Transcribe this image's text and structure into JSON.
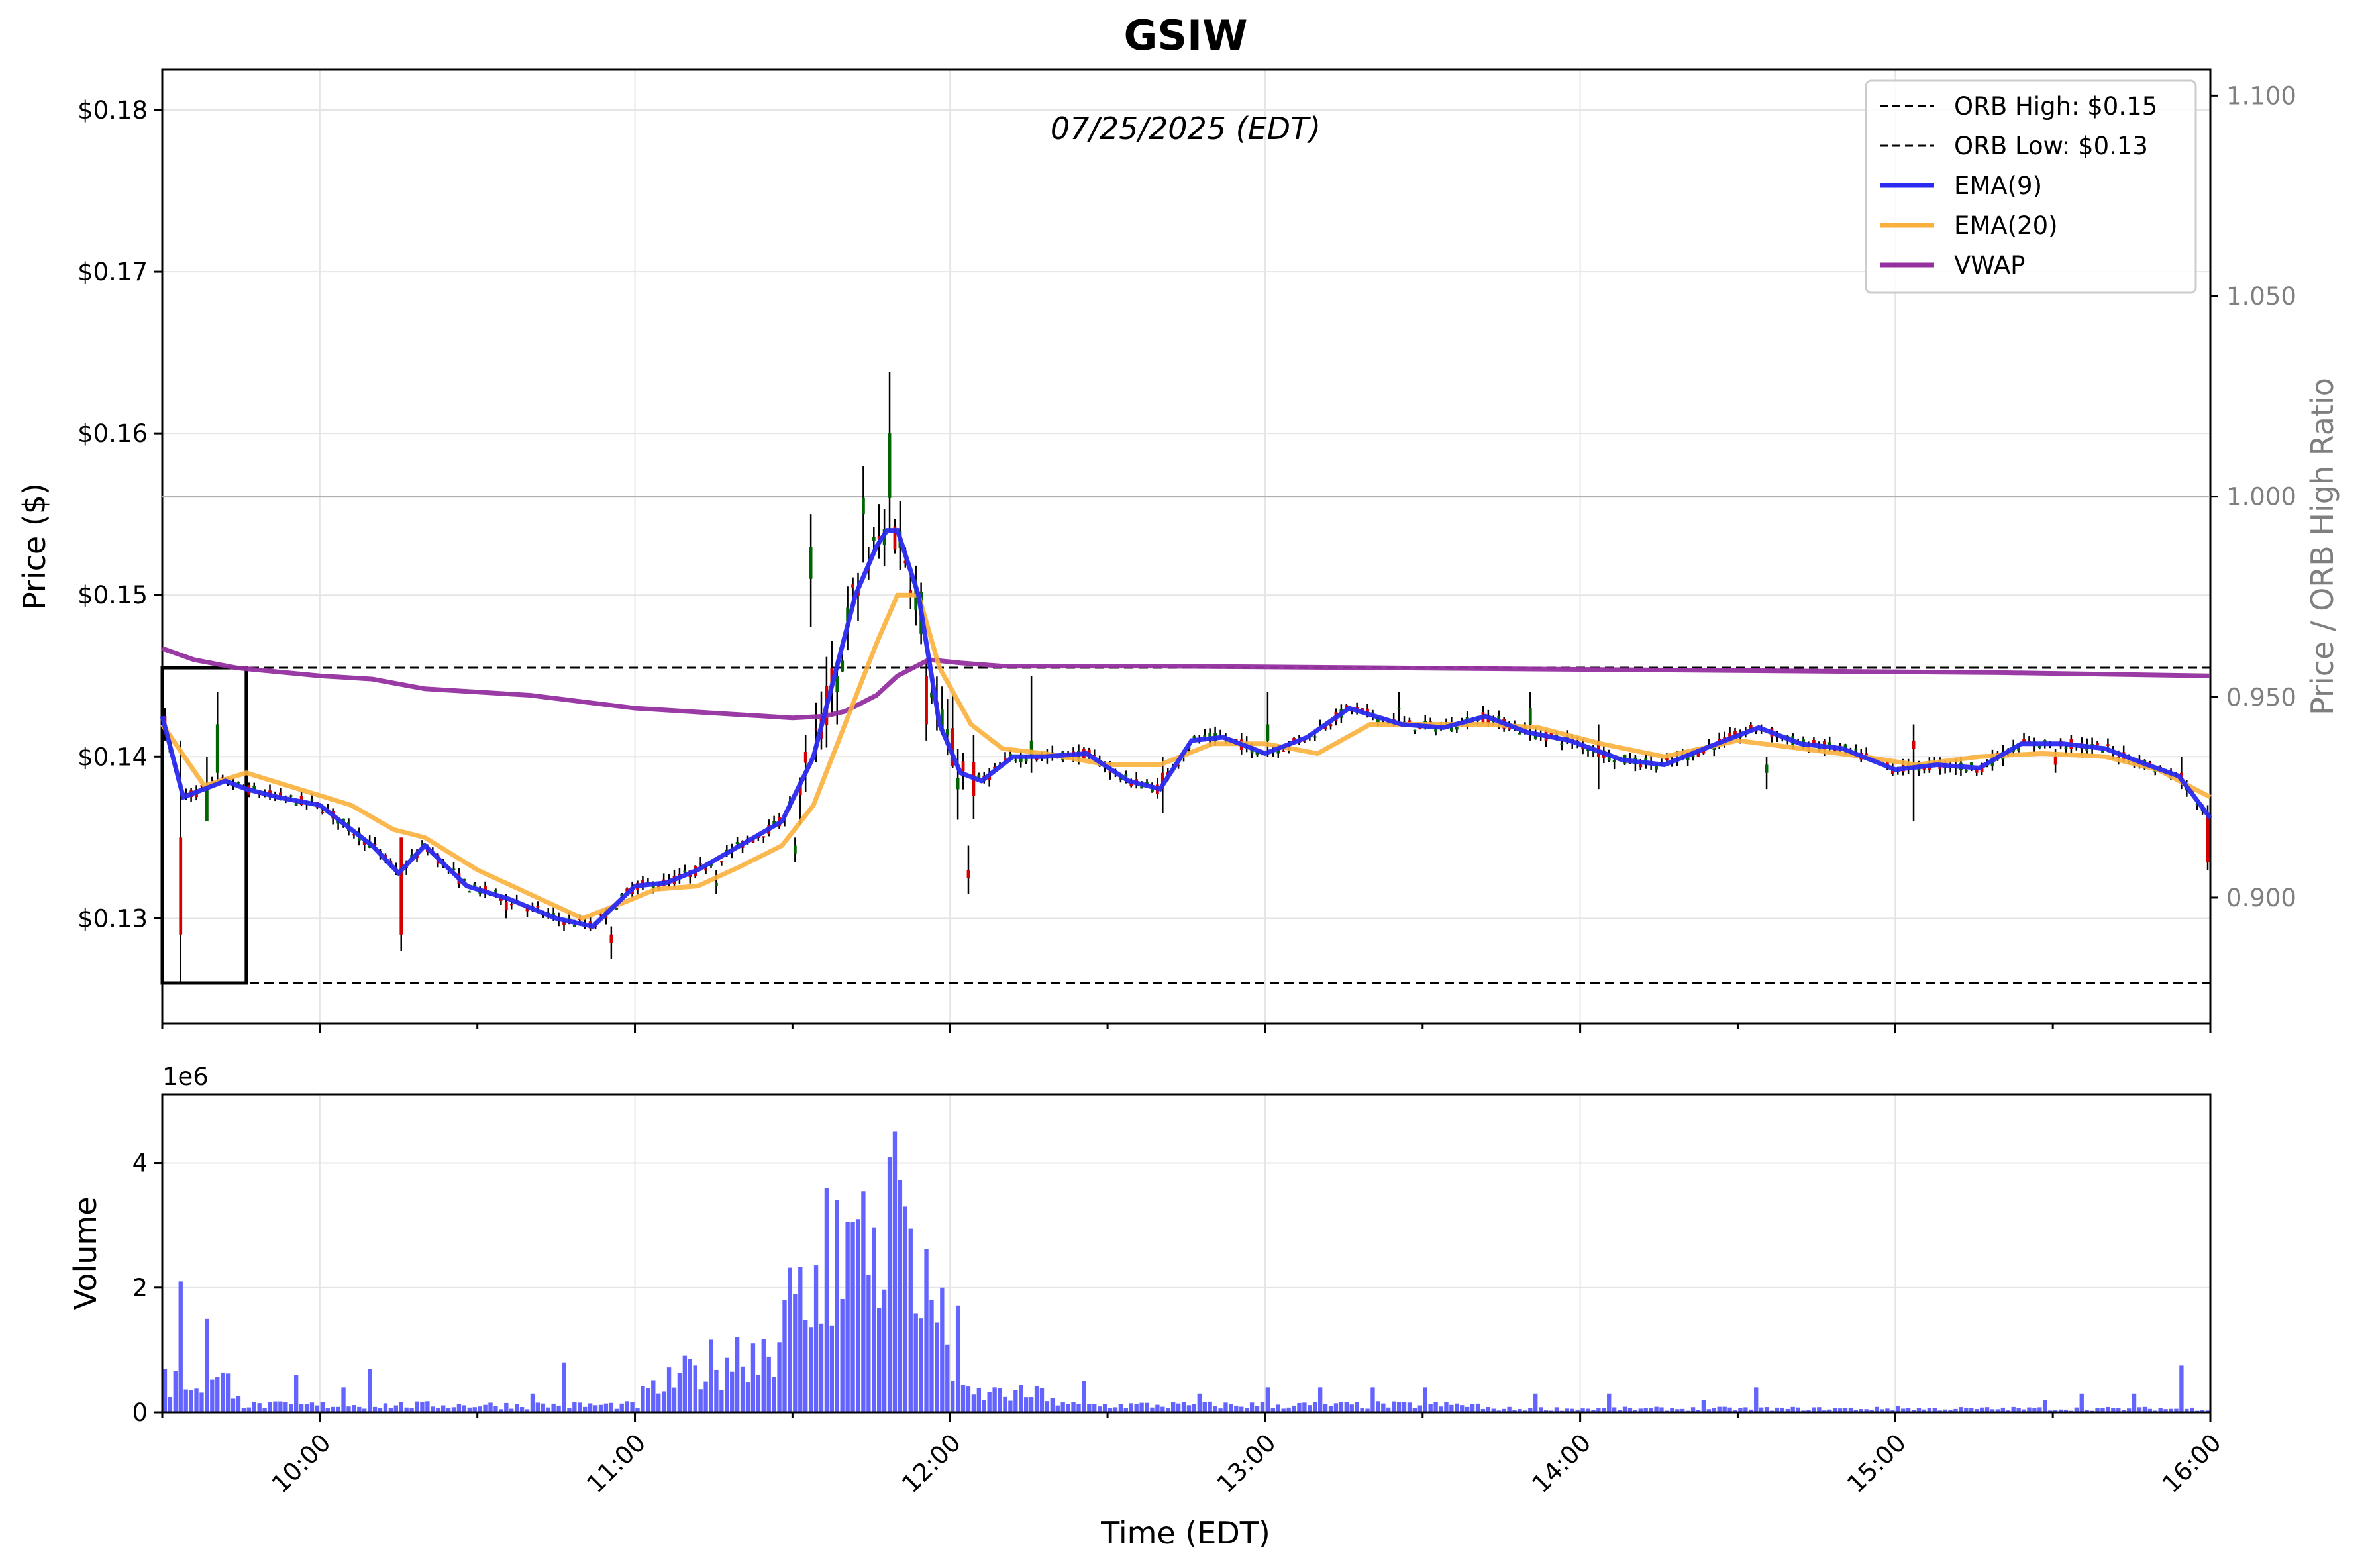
{
  "title": "GSIW",
  "subtitle": "07/25/2025 (EDT)",
  "colors": {
    "ema9": "#2a2af0",
    "ema20": "#f9b03c",
    "vwap": "#952f9f",
    "bull": "#006400",
    "bear": "#d40000",
    "volume": "#5b5bff",
    "grid": "#e5e5e5",
    "right_axis": "#7f7f7f"
  },
  "chart_data": [
    {
      "type": "candlestick",
      "title": "GSIW",
      "subtitle": "07/25/2025 (EDT)",
      "xlabel": "",
      "ylabel": "Price ($)",
      "y2label": "Price / ORB High Ratio",
      "ylim": [
        0.1235,
        0.1825
      ],
      "y2lim": [
        0.8686,
        1.1065
      ],
      "xlim_minutes": [
        570,
        960
      ],
      "y_ticks": [
        0.13,
        0.14,
        0.15,
        0.16,
        0.17,
        0.18
      ],
      "y_tick_labels": [
        "$0.13",
        "$0.14",
        "$0.15",
        "$0.16",
        "$0.17",
        "$0.18"
      ],
      "y2_ticks": [
        0.9,
        0.95,
        1.0,
        1.05,
        1.1
      ],
      "y2_tick_labels": [
        "0.900",
        "0.950",
        "1.000",
        "1.050",
        "1.100"
      ],
      "grid": true,
      "legend_placement": "top-right",
      "legend": [
        {
          "label": "ORB High: $0.15",
          "style": "dashed",
          "color": "#000000"
        },
        {
          "label": "ORB Low: $0.13",
          "style": "dashed",
          "color": "#000000"
        },
        {
          "label": "EMA(9)",
          "style": "solid",
          "color": "#2a2af0"
        },
        {
          "label": "EMA(20)",
          "style": "solid",
          "color": "#f9b03c"
        },
        {
          "label": "VWAP",
          "style": "solid",
          "color": "#952f9f"
        }
      ],
      "orb_high": 0.1455,
      "orb_low": 0.126,
      "orb_window_minutes": [
        570,
        586
      ],
      "ratio_reference": 1.0,
      "candle_minutes": 1,
      "candles_ohlc_sample": [
        {
          "t": 570,
          "o": 0.1425,
          "h": 0.143,
          "l": 0.141,
          "c": 0.142
        },
        {
          "t": 573,
          "o": 0.135,
          "h": 0.141,
          "l": 0.126,
          "c": 0.129
        },
        {
          "t": 578,
          "o": 0.136,
          "h": 0.14,
          "l": 0.136,
          "c": 0.138
        },
        {
          "t": 580,
          "o": 0.139,
          "h": 0.144,
          "l": 0.1385,
          "c": 0.142
        },
        {
          "t": 615,
          "o": 0.135,
          "h": 0.135,
          "l": 0.128,
          "c": 0.129
        },
        {
          "t": 635,
          "o": 0.131,
          "h": 0.1315,
          "l": 0.13,
          "c": 0.1305
        },
        {
          "t": 655,
          "o": 0.129,
          "h": 0.1295,
          "l": 0.1275,
          "c": 0.1285
        },
        {
          "t": 675,
          "o": 0.132,
          "h": 0.133,
          "l": 0.1315,
          "c": 0.1322
        },
        {
          "t": 690,
          "o": 0.134,
          "h": 0.135,
          "l": 0.1335,
          "c": 0.1345
        },
        {
          "t": 698,
          "o": 0.144,
          "h": 0.146,
          "l": 0.142,
          "c": 0.145
        },
        {
          "t": 693,
          "o": 0.151,
          "h": 0.155,
          "l": 0.148,
          "c": 0.153
        },
        {
          "t": 703,
          "o": 0.155,
          "h": 0.158,
          "l": 0.152,
          "c": 0.156
        },
        {
          "t": 708,
          "o": 0.156,
          "h": 0.1638,
          "l": 0.154,
          "c": 0.16
        },
        {
          "t": 715,
          "o": 0.145,
          "h": 0.146,
          "l": 0.141,
          "c": 0.142
        },
        {
          "t": 723,
          "o": 0.133,
          "h": 0.1345,
          "l": 0.1315,
          "c": 0.1325
        },
        {
          "t": 735,
          "o": 0.14,
          "h": 0.145,
          "l": 0.139,
          "c": 0.141
        },
        {
          "t": 760,
          "o": 0.139,
          "h": 0.14,
          "l": 0.1365,
          "c": 0.138
        },
        {
          "t": 780,
          "o": 0.141,
          "h": 0.144,
          "l": 0.14,
          "c": 0.142
        },
        {
          "t": 805,
          "o": 0.143,
          "h": 0.144,
          "l": 0.142,
          "c": 0.143
        },
        {
          "t": 830,
          "o": 0.142,
          "h": 0.144,
          "l": 0.141,
          "c": 0.143
        },
        {
          "t": 843,
          "o": 0.141,
          "h": 0.142,
          "l": 0.138,
          "c": 0.14
        },
        {
          "t": 875,
          "o": 0.139,
          "h": 0.14,
          "l": 0.138,
          "c": 0.1395
        },
        {
          "t": 903,
          "o": 0.141,
          "h": 0.142,
          "l": 0.136,
          "c": 0.1405
        },
        {
          "t": 930,
          "o": 0.14,
          "h": 0.1405,
          "l": 0.139,
          "c": 0.1395
        },
        {
          "t": 954,
          "o": 0.139,
          "h": 0.14,
          "l": 0.138,
          "c": 0.1385
        },
        {
          "t": 959,
          "o": 0.1365,
          "h": 0.137,
          "l": 0.133,
          "c": 0.1335
        }
      ],
      "series": [
        {
          "name": "EMA(9)",
          "x_minutes": [
            570,
            574,
            578,
            582,
            586,
            592,
            600,
            610,
            615,
            620,
            628,
            636,
            645,
            652,
            660,
            666,
            672,
            680,
            688,
            694,
            698,
            702,
            706,
            708,
            710,
            714,
            718,
            722,
            726,
            732,
            738,
            746,
            754,
            760,
            766,
            772,
            780,
            788,
            796,
            806,
            814,
            822,
            830,
            838,
            848,
            856,
            866,
            874,
            882,
            890,
            900,
            908,
            916,
            924,
            932,
            940,
            948,
            954,
            960
          ],
          "values": [
            0.1425,
            0.1375,
            0.138,
            0.1385,
            0.138,
            0.1375,
            0.137,
            0.1345,
            0.1328,
            0.1345,
            0.132,
            0.1312,
            0.13,
            0.1295,
            0.132,
            0.1322,
            0.133,
            0.1345,
            0.136,
            0.14,
            0.145,
            0.15,
            0.153,
            0.154,
            0.154,
            0.15,
            0.142,
            0.139,
            0.1385,
            0.14,
            0.14,
            0.1402,
            0.1385,
            0.138,
            0.141,
            0.1412,
            0.1402,
            0.1412,
            0.143,
            0.142,
            0.1418,
            0.1425,
            0.1415,
            0.141,
            0.1398,
            0.1395,
            0.1408,
            0.1418,
            0.1408,
            0.1405,
            0.1392,
            0.1395,
            0.1393,
            0.1408,
            0.1408,
            0.1405,
            0.1395,
            0.1388,
            0.1362
          ]
        },
        {
          "name": "EMA(20)",
          "x_minutes": [
            570,
            578,
            586,
            596,
            606,
            614,
            620,
            630,
            640,
            650,
            658,
            664,
            672,
            680,
            688,
            694,
            700,
            706,
            710,
            714,
            718,
            724,
            730,
            738,
            750,
            760,
            770,
            780,
            790,
            800,
            812,
            822,
            832,
            844,
            856,
            870,
            882,
            894,
            904,
            916,
            928,
            940,
            950,
            960
          ],
          "values": [
            0.142,
            0.1382,
            0.139,
            0.138,
            0.137,
            0.1355,
            0.135,
            0.133,
            0.1315,
            0.13,
            0.131,
            0.1318,
            0.132,
            0.1332,
            0.1345,
            0.137,
            0.142,
            0.147,
            0.15,
            0.15,
            0.1455,
            0.142,
            0.1405,
            0.1402,
            0.1395,
            0.1395,
            0.1408,
            0.1408,
            0.1402,
            0.142,
            0.142,
            0.142,
            0.1418,
            0.1408,
            0.14,
            0.141,
            0.1405,
            0.14,
            0.1395,
            0.14,
            0.1402,
            0.14,
            0.1392,
            0.1375
          ]
        },
        {
          "name": "VWAP",
          "x_minutes": [
            570,
            576,
            584,
            600,
            610,
            620,
            640,
            660,
            680,
            690,
            696,
            700,
            706,
            710,
            716,
            722,
            730,
            760,
            800,
            840,
            880,
            920,
            960
          ],
          "values": [
            0.1467,
            0.146,
            0.1455,
            0.145,
            0.1448,
            0.1442,
            0.1438,
            0.143,
            0.1426,
            0.1424,
            0.1425,
            0.1428,
            0.1438,
            0.145,
            0.146,
            0.1458,
            0.1456,
            0.1456,
            0.1455,
            0.1454,
            0.1453,
            0.1452,
            0.145
          ]
        }
      ]
    },
    {
      "type": "bar",
      "xlabel": "Time (EDT)",
      "ylabel": "Volume",
      "y_scale_label": "1e6",
      "ylim": [
        0,
        5.1
      ],
      "y_ticks": [
        0,
        2,
        4
      ],
      "y_tick_labels": [
        "0",
        "2",
        "4"
      ],
      "x_ticks_minutes": [
        600,
        660,
        720,
        780,
        840,
        900,
        960
      ],
      "x_tick_labels": [
        "10:00",
        "11:00",
        "12:00",
        "13:00",
        "14:00",
        "15:00",
        "16:00"
      ],
      "grid": true,
      "color": "#5b5bff",
      "bar_minutes": 1,
      "volume_millions_sample": [
        {
          "t": 570,
          "v": 0.7
        },
        {
          "t": 573,
          "v": 2.1
        },
        {
          "t": 578,
          "v": 1.5
        },
        {
          "t": 595,
          "v": 0.6
        },
        {
          "t": 604,
          "v": 0.4
        },
        {
          "t": 609,
          "v": 0.7
        },
        {
          "t": 640,
          "v": 0.3
        },
        {
          "t": 646,
          "v": 0.8
        },
        {
          "t": 683,
          "v": 0.6
        },
        {
          "t": 690,
          "v": 1.9
        },
        {
          "t": 696,
          "v": 3.6
        },
        {
          "t": 698,
          "v": 3.4
        },
        {
          "t": 702,
          "v": 3.1
        },
        {
          "t": 708,
          "v": 4.1
        },
        {
          "t": 709,
          "v": 4.5
        },
        {
          "t": 711,
          "v": 3.3
        },
        {
          "t": 716,
          "v": 1.8
        },
        {
          "t": 718,
          "v": 2.0
        },
        {
          "t": 720,
          "v": 0.5
        },
        {
          "t": 728,
          "v": 0.4
        },
        {
          "t": 745,
          "v": 0.5
        },
        {
          "t": 767,
          "v": 0.3
        },
        {
          "t": 780,
          "v": 0.4
        },
        {
          "t": 790,
          "v": 0.4
        },
        {
          "t": 800,
          "v": 0.4
        },
        {
          "t": 810,
          "v": 0.4
        },
        {
          "t": 831,
          "v": 0.3
        },
        {
          "t": 845,
          "v": 0.3
        },
        {
          "t": 863,
          "v": 0.2
        },
        {
          "t": 873,
          "v": 0.4
        },
        {
          "t": 900,
          "v": 0.1
        },
        {
          "t": 928,
          "v": 0.2
        },
        {
          "t": 935,
          "v": 0.3
        },
        {
          "t": 945,
          "v": 0.3
        },
        {
          "t": 954,
          "v": 0.75
        },
        {
          "t": 960,
          "v": 0.45
        }
      ]
    }
  ]
}
